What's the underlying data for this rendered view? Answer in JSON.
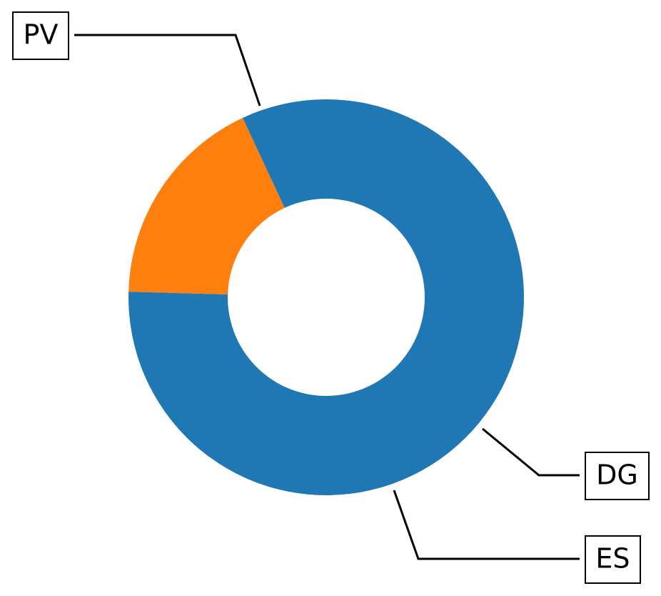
{
  "chart_data": {
    "type": "pie",
    "style": "donut",
    "categories": [
      "PV",
      "DG",
      "ES"
    ],
    "values": [
      82.4,
      0.0,
      17.6
    ],
    "colors": [
      "#1f77b4",
      "#2ca02c",
      "#ff7f0e"
    ],
    "title": "",
    "legend": "none",
    "labels_boxed": true
  }
}
